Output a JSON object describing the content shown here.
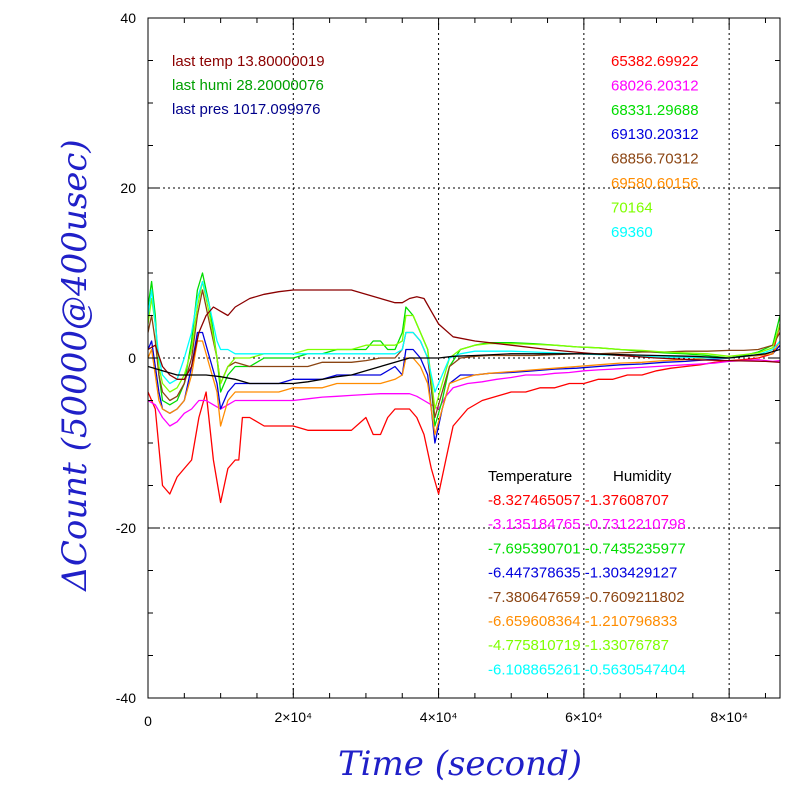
{
  "chart_data": {
    "type": "line",
    "xlabel": "Time (second)",
    "ylabel": "ΔCount (50000@400usec)",
    "xlim": [
      0,
      87000
    ],
    "ylim": [
      -40,
      40
    ],
    "grid": true,
    "x_ticks": [
      {
        "value": 0,
        "label": "0"
      },
      {
        "value": 20000,
        "label": "2×10⁴"
      },
      {
        "value": 40000,
        "label": "4×10⁴"
      },
      {
        "value": 60000,
        "label": "6×10⁴"
      },
      {
        "value": 80000,
        "label": "8×10⁴"
      }
    ],
    "y_ticks": [
      {
        "value": 40,
        "label": "40"
      },
      {
        "value": 20,
        "label": "20"
      },
      {
        "value": 0,
        "label": "0"
      },
      {
        "value": -20,
        "label": "-20"
      },
      {
        "value": -40,
        "label": "-40"
      }
    ],
    "environment": [
      {
        "text": "last temp 13.80000019",
        "color": "#8b0000"
      },
      {
        "text": "last humi 28.20000076",
        "color": "#00a000"
      },
      {
        "text": "last pres 1017.099976",
        "color": "#00008b"
      }
    ],
    "channel_counts": [
      {
        "text": "65382.69922",
        "color": "#ff0000"
      },
      {
        "text": "68026.20312",
        "color": "#ff00ff"
      },
      {
        "text": "68331.29688",
        "color": "#00dd00"
      },
      {
        "text": "69130.20312",
        "color": "#0000dd"
      },
      {
        "text": "68856.70312",
        "color": "#8b4513"
      },
      {
        "text": "69580.60156",
        "color": "#ff8c00"
      },
      {
        "text": "70164",
        "color": "#7fff00"
      },
      {
        "text": "69360",
        "color": "#00ffff"
      }
    ],
    "coefficients_header": {
      "temperature": "Temperature",
      "humidity": "Humidity"
    },
    "coefficients": [
      {
        "text": "-8.327465057 -1.37608707",
        "color": "#ff0000"
      },
      {
        "text": "-3.135184765 -0.7312210798",
        "color": "#ff00ff"
      },
      {
        "text": "-7.695390701 -0.7435235977",
        "color": "#00dd00"
      },
      {
        "text": "-6.447378635 -1.303429127",
        "color": "#0000dd"
      },
      {
        "text": "-7.380647659 -0.7609211802",
        "color": "#8b4513"
      },
      {
        "text": "-6.659608364 -1.210796833",
        "color": "#ff8c00"
      },
      {
        "text": "-4.775810719 -1.33076787",
        "color": "#7fff00"
      },
      {
        "text": "-6.108865261 -0.5630547404",
        "color": "#00ffff"
      }
    ],
    "series": [
      {
        "color": "#ff0000",
        "x": [
          0,
          1000,
          2000,
          3000,
          4000,
          5000,
          6000,
          7000,
          8000,
          9000,
          10000,
          11000,
          12000,
          12500,
          13000,
          14000,
          16000,
          18000,
          20000,
          22000,
          24000,
          26000,
          28000,
          30000,
          31000,
          32000,
          33000,
          34000,
          35000,
          36000,
          37000,
          38000,
          39000,
          40000,
          41000,
          42000,
          44000,
          46000,
          48000,
          50000,
          52000,
          54000,
          56000,
          58000,
          60000,
          62000,
          64000,
          66000,
          68000,
          70000,
          72000,
          74000,
          76000,
          78000,
          80000,
          82000,
          84000,
          86000,
          87000
        ],
        "y": [
          -4,
          -6,
          -15,
          -16,
          -14,
          -13,
          -12,
          -7,
          -4,
          -12,
          -17,
          -13,
          -12,
          -12,
          -7,
          -7,
          -8,
          -8,
          -8,
          -8.5,
          -8.5,
          -8.5,
          -8.5,
          -7,
          -9,
          -9,
          -7,
          -6,
          -6,
          -6,
          -7,
          -9,
          -13,
          -16,
          -12,
          -8,
          -6,
          -5,
          -4.5,
          -4,
          -4,
          -3.5,
          -3.5,
          -3,
          -3,
          -2.5,
          -2.5,
          -2,
          -2,
          -1.5,
          -1.2,
          -1,
          -0.8,
          -0.5,
          -0.3,
          -0.2,
          0,
          0.5,
          4
        ]
      },
      {
        "color": "#ff00ff",
        "x": [
          0,
          1000,
          2000,
          3000,
          4000,
          5000,
          6000,
          7000,
          8000,
          9000,
          10000,
          11000,
          12000,
          14000,
          16000,
          18000,
          20000,
          22000,
          24000,
          26000,
          28000,
          30000,
          32000,
          34000,
          36000,
          37000,
          38000,
          39000,
          40000,
          41000,
          42000,
          44000,
          46000,
          48000,
          50000,
          52000,
          54000,
          56000,
          58000,
          60000,
          62000,
          64000,
          66000,
          68000,
          70000,
          72000,
          74000,
          76000,
          78000,
          80000,
          82000,
          84000,
          86000,
          87000
        ],
        "y": [
          -5,
          -5.5,
          -7,
          -8,
          -7.5,
          -6.5,
          -6,
          -5,
          -5,
          -5.5,
          -6,
          -5.5,
          -5,
          -5,
          -5,
          -5,
          -5,
          -4.8,
          -4.6,
          -4.5,
          -4.4,
          -4.3,
          -4.2,
          -4.2,
          -4.2,
          -4.5,
          -5,
          -5.5,
          -6,
          -4.5,
          -3.5,
          -3,
          -2.8,
          -2.5,
          -2.3,
          -2,
          -2,
          -1.8,
          -1.7,
          -1.5,
          -1.4,
          -1.3,
          -1.2,
          -1.1,
          -1,
          -0.9,
          -0.8,
          -0.7,
          -0.6,
          -0.4,
          -0.3,
          -0.2,
          -0.4,
          -0.3
        ]
      },
      {
        "color": "#00dd00",
        "x": [
          0,
          500,
          1000,
          1500,
          2000,
          3000,
          4000,
          5000,
          6000,
          6800,
          7500,
          8500,
          9500,
          10000,
          11000,
          12000,
          14000,
          16000,
          18000,
          20000,
          22000,
          24000,
          26000,
          28000,
          30000,
          31000,
          32000,
          33000,
          34000,
          35000,
          35500,
          36500,
          37500,
          38500,
          39500,
          40500,
          41500,
          43000,
          45000,
          47000,
          50000,
          53000,
          56000,
          59000,
          62000,
          65000,
          68000,
          71000,
          74000,
          77000,
          80000,
          82000,
          84000,
          86000,
          87000
        ],
        "y": [
          6,
          9,
          5,
          -2,
          -5,
          -5.5,
          -5,
          -3,
          2,
          8,
          10,
          6,
          0,
          -4,
          -2,
          -1,
          -1,
          0,
          0,
          0,
          0.5,
          0.5,
          1,
          1,
          1,
          2,
          2,
          1,
          1,
          3,
          6,
          5,
          3,
          1,
          -8,
          -5,
          -1,
          1,
          1.5,
          1.8,
          1.8,
          1.7,
          1.5,
          1.3,
          1.2,
          1,
          0.8,
          0.6,
          0.5,
          0.3,
          0,
          0.3,
          0.7,
          1.5,
          5
        ]
      },
      {
        "color": "#0000dd",
        "x": [
          0,
          500,
          1000,
          1500,
          2000,
          3000,
          4000,
          5000,
          6000,
          6800,
          7500,
          8500,
          9500,
          10000,
          11000,
          12000,
          14000,
          16000,
          18000,
          20000,
          22000,
          24000,
          26000,
          28000,
          30000,
          32000,
          34000,
          35000,
          35500,
          36500,
          37500,
          38500,
          39500,
          40500,
          41500,
          43000,
          45000,
          47000,
          50000,
          53000,
          56000,
          59000,
          62000,
          65000,
          68000,
          71000,
          74000,
          77000,
          80000,
          82000,
          84000,
          86000,
          87000
        ],
        "y": [
          1,
          2,
          -1,
          -4,
          -6,
          -6.5,
          -6,
          -5,
          -1,
          3,
          3,
          0,
          -3,
          -6,
          -4,
          -3,
          -3,
          -3,
          -3,
          -2.5,
          -2.5,
          -2.5,
          -2,
          -2,
          -2,
          -2,
          -1,
          -2,
          1,
          1,
          0,
          -2,
          -10,
          -6,
          -3,
          -2,
          -2,
          -1.8,
          -1.7,
          -1.5,
          -1.3,
          -1.2,
          -1,
          -0.8,
          -0.7,
          -0.5,
          -0.4,
          -0.2,
          0,
          0.2,
          0.3,
          0.5,
          1.5
        ]
      },
      {
        "color": "#8b4513",
        "x": [
          0,
          500,
          1000,
          1500,
          2000,
          3000,
          4000,
          5000,
          6000,
          6800,
          7500,
          8500,
          9500,
          10000,
          11000,
          12000,
          14000,
          16000,
          18000,
          20000,
          22000,
          24000,
          26000,
          28000,
          30000,
          32000,
          34000,
          35000,
          35500,
          36500,
          37500,
          38500,
          39500,
          40500,
          41500,
          43000,
          45000,
          47000,
          50000,
          53000,
          56000,
          59000,
          62000,
          65000,
          68000,
          71000,
          74000,
          77000,
          80000,
          82000,
          84000,
          86000,
          87000
        ],
        "y": [
          3,
          5,
          2,
          -2,
          -4,
          -5,
          -4.5,
          -3,
          0,
          5,
          8,
          4,
          0,
          -3,
          -1,
          -0.5,
          -1,
          -1,
          -1,
          -1,
          -1,
          -0.5,
          -0.5,
          -0.5,
          -0.3,
          0,
          0,
          1,
          3,
          3,
          2,
          0,
          -7,
          -4,
          -1,
          0,
          0.2,
          0.3,
          0.3,
          0.3,
          0.4,
          0.5,
          0.5,
          0.6,
          0.7,
          0.7,
          0.8,
          0.8,
          0.9,
          0.9,
          1,
          1.5,
          3
        ]
      },
      {
        "color": "#ff8c00",
        "x": [
          0,
          500,
          1000,
          1500,
          2000,
          3000,
          4000,
          5000,
          6000,
          6800,
          7500,
          8500,
          9500,
          10000,
          11000,
          12000,
          14000,
          16000,
          18000,
          20000,
          22000,
          24000,
          26000,
          28000,
          30000,
          32000,
          34000,
          35000,
          35500,
          36500,
          37500,
          38500,
          39500,
          40500,
          41500,
          43000,
          45000,
          47000,
          50000,
          53000,
          56000,
          59000,
          62000,
          65000,
          68000,
          71000,
          74000,
          77000,
          80000,
          82000,
          84000,
          86000,
          87000
        ],
        "y": [
          0,
          1,
          -2,
          -5,
          -6,
          -6.5,
          -6,
          -5,
          -2,
          2,
          2,
          -1,
          -4,
          -8,
          -5,
          -4,
          -4,
          -4,
          -4,
          -3.5,
          -3.5,
          -3.5,
          -3,
          -3,
          -3,
          -3,
          -2.5,
          -2,
          0,
          0,
          -1,
          -3,
          -9,
          -6,
          -3,
          -2.5,
          -2,
          -1.8,
          -1.6,
          -1.4,
          -1.2,
          -1,
          -0.8,
          -0.6,
          -0.5,
          -0.3,
          -0.2,
          0,
          0,
          0.2,
          0.3,
          0.5,
          2
        ]
      },
      {
        "color": "#7fff00",
        "x": [
          0,
          500,
          1000,
          1500,
          2000,
          3000,
          4000,
          5000,
          6000,
          6800,
          7500,
          8500,
          9500,
          10000,
          11000,
          12000,
          14000,
          16000,
          18000,
          20000,
          22000,
          24000,
          26000,
          28000,
          30000,
          32000,
          34000,
          35000,
          35500,
          36500,
          37500,
          38500,
          39500,
          40500,
          41500,
          43000,
          45000,
          47000,
          50000,
          53000,
          56000,
          59000,
          62000,
          65000,
          68000,
          71000,
          74000,
          77000,
          80000,
          82000,
          84000,
          86000,
          87000
        ],
        "y": [
          4,
          7,
          4,
          -1,
          -3,
          -4,
          -3.5,
          -2,
          1,
          6,
          9,
          5,
          0,
          -3,
          -1,
          0,
          0,
          0.5,
          0.5,
          0.5,
          1,
          1,
          1,
          1,
          1.5,
          1.5,
          1.5,
          2,
          5,
          5,
          3,
          1,
          -6,
          -3,
          0,
          1,
          1.5,
          1.7,
          1.7,
          1.6,
          1.5,
          1.3,
          1.2,
          1,
          0.9,
          0.7,
          0.6,
          0.5,
          0.2,
          0.4,
          0.6,
          1.2,
          4
        ]
      },
      {
        "color": "#00ffff",
        "x": [
          0,
          500,
          1000,
          1500,
          2000,
          3000,
          4000,
          5000,
          6000,
          6800,
          7500,
          8500,
          9500,
          10000,
          11000,
          12000,
          14000,
          16000,
          18000,
          20000,
          22000,
          24000,
          26000,
          28000,
          30000,
          32000,
          34000,
          35000,
          35500,
          36500,
          37500,
          38500,
          39500,
          40500,
          41500,
          43000,
          45000,
          47000,
          50000,
          53000,
          56000,
          59000,
          62000,
          65000,
          68000,
          71000,
          74000,
          77000,
          80000,
          82000,
          84000,
          86000,
          87000
        ],
        "y": [
          5,
          8,
          4,
          0,
          -2,
          -3,
          -2.5,
          0,
          3,
          7,
          9,
          6,
          2,
          1,
          1,
          0.5,
          0.5,
          0.5,
          0.5,
          0.5,
          0.5,
          0.5,
          0.5,
          0.5,
          0.5,
          0.5,
          0.5,
          1,
          3,
          3,
          2,
          0,
          -4,
          -2,
          0,
          0.5,
          0.8,
          0.8,
          0.8,
          0.7,
          0.6,
          0.5,
          0.4,
          0.3,
          0.2,
          0.1,
          0.1,
          0,
          0,
          0.2,
          0.4,
          1,
          2
        ]
      },
      {
        "color": "#8b0000",
        "x": [
          0,
          1000,
          2000,
          3000,
          4000,
          5000,
          6000,
          7000,
          8000,
          9000,
          10000,
          11000,
          12000,
          14000,
          16000,
          18000,
          20000,
          22000,
          24000,
          26000,
          28000,
          30000,
          32000,
          34000,
          35000,
          36000,
          37000,
          38000,
          39000,
          40000,
          42000,
          45000,
          50000,
          55000,
          60000,
          65000,
          70000,
          75000,
          80000,
          85000,
          87000
        ],
        "y": [
          1,
          1.5,
          -1,
          -2,
          -2.5,
          -2.5,
          -1,
          3,
          5,
          6,
          5.5,
          5,
          6,
          7,
          7.5,
          7.8,
          8,
          8,
          8,
          8,
          8,
          7.5,
          7,
          6.5,
          6.5,
          7,
          7.2,
          7,
          5.5,
          4,
          2.5,
          2,
          1.5,
          1,
          0.6,
          0.3,
          0,
          -0.2,
          -0.3,
          -0.4,
          -0.5
        ]
      },
      {
        "color": "#000000",
        "x": [
          0,
          2000,
          4000,
          6000,
          8000,
          10000,
          12000,
          14000,
          16000,
          18000,
          20000,
          22000,
          24000,
          26000,
          28000,
          30000,
          32000,
          34000,
          36000,
          38000,
          40000,
          42000,
          45000,
          50000,
          55000,
          60000,
          65000,
          70000,
          75000,
          80000,
          85000,
          87000
        ],
        "y": [
          -1,
          -1.5,
          -2,
          -2,
          -2,
          -2.2,
          -2.5,
          -3,
          -3,
          -3,
          -3,
          -2.8,
          -2.5,
          -2.2,
          -2,
          -1.5,
          -1,
          -0.5,
          0,
          0,
          0,
          0.2,
          0.3,
          0.5,
          0.5,
          0.5,
          0.4,
          0.3,
          0.2,
          0,
          0.5,
          1
        ]
      }
    ]
  }
}
